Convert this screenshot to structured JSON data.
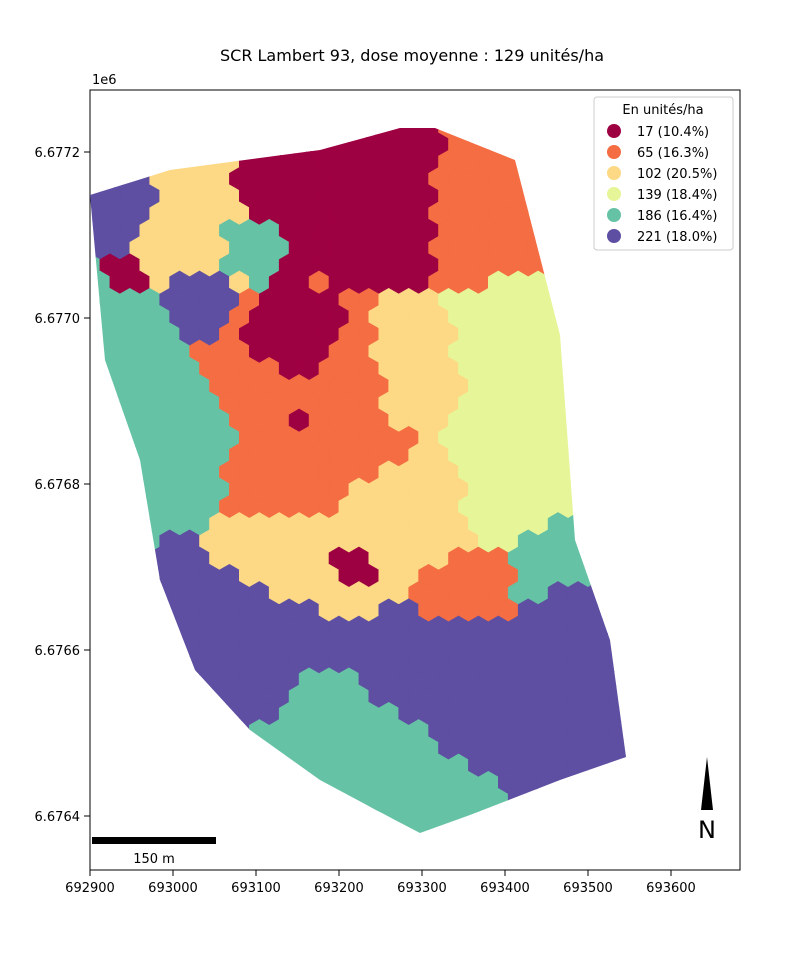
{
  "title": "SCR Lambert 93, dose moyenne : 129 unités/ha",
  "y_offset_label": "1e6",
  "x_ticks": [
    "692900",
    "693000",
    "693100",
    "693200",
    "693300",
    "693400",
    "693500",
    "693600"
  ],
  "y_ticks": [
    "6.6772",
    "6.6770",
    "6.6768",
    "6.6766",
    "6.6764"
  ],
  "legend": {
    "title": "En unités/ha",
    "entries": [
      {
        "label": "17 (10.4%)",
        "color": "#9e0142"
      },
      {
        "label": "65 (16.3%)",
        "color": "#f46d43"
      },
      {
        "label": "102 (20.5%)",
        "color": "#fdd985"
      },
      {
        "label": "139 (18.4%)",
        "color": "#e6f598"
      },
      {
        "label": "186 (16.4%)",
        "color": "#66c2a5"
      },
      {
        "label": "221 (18.0%)",
        "color": "#5e4fa2"
      }
    ]
  },
  "scale_bar": {
    "label": "150 m",
    "length_m": 150
  },
  "north_arrow": {
    "label": "N"
  },
  "chart_data": {
    "type": "heatmap",
    "title": "SCR Lambert 93, dose moyenne : 129 unités/ha",
    "x_range": [
      692900,
      693680
    ],
    "y_range": [
      6676340,
      6677280
    ],
    "zones": [
      {
        "dose": 221,
        "share_pct": 18.0
      },
      {
        "dose": 186,
        "share_pct": 16.4
      },
      {
        "dose": 139,
        "share_pct": 18.4
      },
      {
        "dose": 102,
        "share_pct": 20.5
      },
      {
        "dose": 65,
        "share_pct": 16.3
      },
      {
        "dose": 17,
        "share_pct": 10.4
      }
    ]
  }
}
